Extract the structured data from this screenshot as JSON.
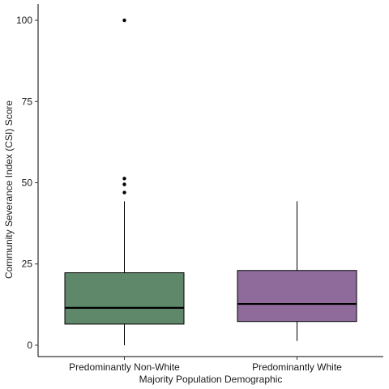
{
  "chart_data": {
    "type": "boxplot",
    "title": "",
    "xlabel": "Majority Population Demographic",
    "ylabel": "Community Severance Index (CSI) Score",
    "ylim": [
      -3.5,
      105
    ],
    "yticks": [
      0,
      25,
      50,
      75,
      100
    ],
    "grid": false,
    "legend": "none",
    "categories": [
      "Predominantly Non-White",
      "Predominantly White"
    ],
    "series": [
      {
        "category": "Predominantly Non-White",
        "color": "#5f8769",
        "whisker_low": 0,
        "q1": 6.5,
        "median": 11.5,
        "q3": 22.3,
        "whisker_high": 44.3,
        "outliers": [
          47,
          49.5,
          51.3,
          100
        ]
      },
      {
        "category": "Predominantly White",
        "color": "#8f6b9b",
        "whisker_low": 1.3,
        "q1": 7.3,
        "median": 12.7,
        "q3": 23,
        "whisker_high": 44.3,
        "outliers": []
      }
    ]
  }
}
